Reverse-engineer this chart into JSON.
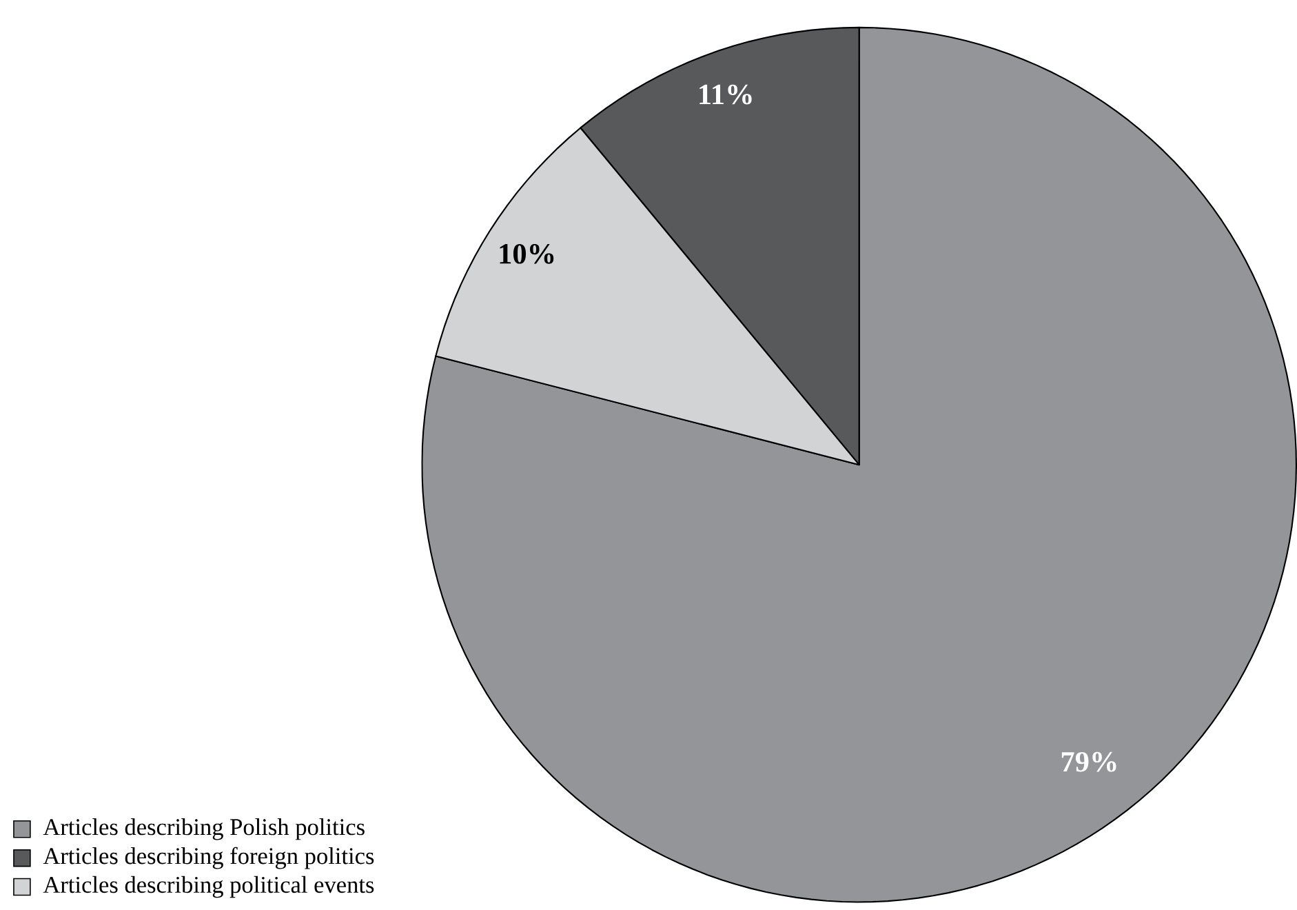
{
  "chart_data": {
    "type": "pie",
    "categories": [
      "Articles describing Polish politics",
      "Articles describing foreign politics",
      "Articles describing political events"
    ],
    "values": [
      79,
      11,
      10
    ],
    "colors": [
      "#939598",
      "#58595b",
      "#d1d3d4"
    ],
    "value_labels": [
      "79%",
      "11%",
      "10%"
    ],
    "legend": "bottom left"
  }
}
